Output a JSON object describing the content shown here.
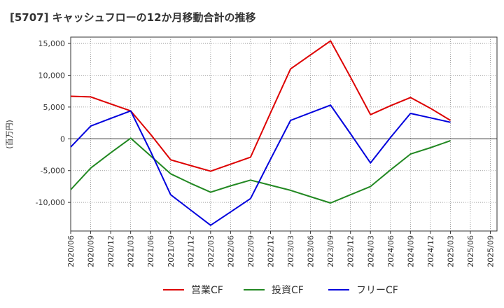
{
  "chart_data": {
    "type": "line",
    "title": "[5707]  キャッシュフローの12か月移動合計の推移",
    "ylabel": "(百万円)",
    "xlabel": "",
    "ylim": [
      -14500,
      16000
    ],
    "yticks": [
      -10000,
      -5000,
      0,
      5000,
      10000,
      15000
    ],
    "ytick_labels": [
      "-10,000",
      "-5,000",
      "0",
      "5,000",
      "10,000",
      "15,000"
    ],
    "categories": [
      "2020/06",
      "2020/09",
      "2020/12",
      "2021/03",
      "2021/06",
      "2021/09",
      "2021/12",
      "2022/03",
      "2022/06",
      "2022/09",
      "2022/12",
      "2023/03",
      "2023/06",
      "2023/09",
      "2023/12",
      "2024/03",
      "2024/06",
      "2024/09",
      "2024/12",
      "2025/03",
      "2025/06",
      "2025/09"
    ],
    "grid": true,
    "legend_position": "bottom",
    "series": [
      {
        "name": "営業CF",
        "color": "#dd0000",
        "values": [
          6700,
          6600,
          5500,
          4400,
          700,
          -3300,
          -4200,
          -5100,
          -4000,
          -2900,
          4100,
          11000,
          13200,
          15400,
          9700,
          3800,
          5200,
          6500,
          4800,
          2900,
          null,
          null
        ]
      },
      {
        "name": "投資CF",
        "color": "#228822",
        "values": [
          -8000,
          -4600,
          -2200,
          100,
          -2700,
          -5500,
          -7000,
          -8400,
          -7400,
          -6500,
          -7300,
          -8100,
          -9100,
          -10100,
          -8800,
          -7500,
          -4900,
          -2400,
          -1400,
          -300,
          null,
          null
        ]
      },
      {
        "name": "フリーCF",
        "color": "#0000dd",
        "values": [
          -1300,
          2000,
          3200,
          4400,
          -2000,
          -8800,
          -11200,
          -13600,
          -11500,
          -9400,
          -3200,
          2900,
          4100,
          5300,
          800,
          -3800,
          200,
          4000,
          3300,
          2600,
          null,
          null
        ]
      }
    ]
  }
}
